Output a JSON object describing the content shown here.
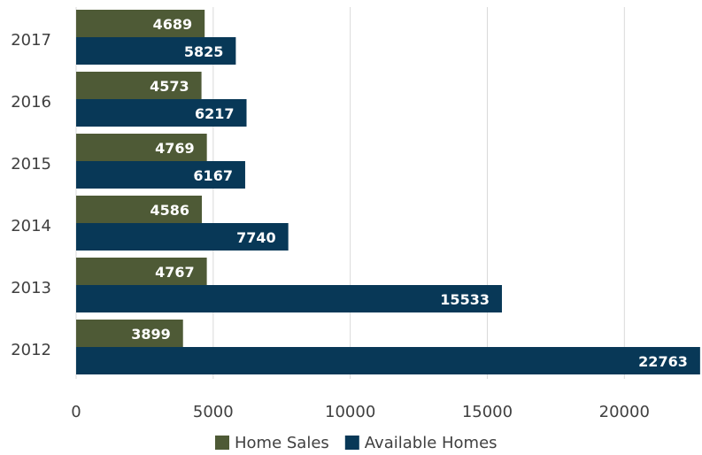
{
  "chart_data": {
    "type": "hbar",
    "categories": [
      "2017",
      "2016",
      "2015",
      "2014",
      "2013",
      "2012"
    ],
    "series": [
      {
        "name": "Home Sales",
        "color": "#4e5a36",
        "values": [
          4689,
          4573,
          4769,
          4586,
          4767,
          3899
        ]
      },
      {
        "name": "Available Homes",
        "color": "#083857",
        "values": [
          5825,
          6217,
          6167,
          7740,
          15533,
          22763
        ]
      }
    ],
    "xlim": [
      0,
      22800
    ],
    "xticks": [
      0,
      5000,
      10000,
      15000,
      20000
    ],
    "grid": true,
    "legend": "bottom"
  }
}
